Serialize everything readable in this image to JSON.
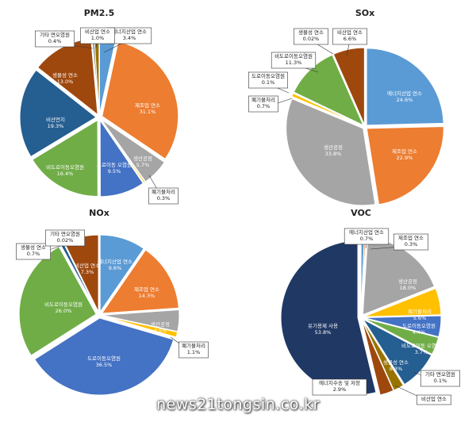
{
  "chart_data": [
    {
      "type": "pie",
      "title": "PM2.5",
      "slices": [
        {
          "label": "에너지산업 연소",
          "value": 3.4,
          "pct": "3.4%",
          "color": "#5b9bd5"
        },
        {
          "label": "제조업 연소",
          "value": 31.1,
          "pct": "31.1%",
          "color": "#ed7d31"
        },
        {
          "label": "생산공정",
          "value": 5.7,
          "pct": "5.7%",
          "color": "#a5a5a5"
        },
        {
          "label": "폐기물처리",
          "value": 0.3,
          "pct": "0.3%",
          "color": "#ffc000"
        },
        {
          "label": "도로이동 오염원",
          "value": 9.5,
          "pct": "9.5%",
          "color": "#4472c4"
        },
        {
          "label": "비도로이동오염원",
          "value": 16.4,
          "pct": "16.4%",
          "color": "#70ad47"
        },
        {
          "label": "비산먼지",
          "value": 19.3,
          "pct": "19.3%",
          "color": "#255e91"
        },
        {
          "label": "생물성 연소",
          "value": 13.0,
          "pct": "13.0%",
          "color": "#9e480e"
        },
        {
          "label": "기타 면오염원",
          "value": 0.4,
          "pct": "0.4%",
          "color": "#636363"
        },
        {
          "label": "비산업 연소",
          "value": 1.0,
          "pct": "1.0%",
          "color": "#997300"
        }
      ]
    },
    {
      "type": "pie",
      "title": "SOx",
      "slices": [
        {
          "label": "에너지산업 연소",
          "value": 24.6,
          "pct": "24.6%",
          "color": "#5b9bd5"
        },
        {
          "label": "제조업 연소",
          "value": 22.9,
          "pct": "22.9%",
          "color": "#ed7d31"
        },
        {
          "label": "생산공정",
          "value": 33.8,
          "pct": "33.8%",
          "color": "#a5a5a5"
        },
        {
          "label": "폐기물처리",
          "value": 0.7,
          "pct": "0.7%",
          "color": "#ffc000"
        },
        {
          "label": "도로이동오염원",
          "value": 0.1,
          "pct": "0.1%",
          "color": "#4472c4"
        },
        {
          "label": "비도로이동오염원",
          "value": 11.3,
          "pct": "11.3%",
          "color": "#70ad47"
        },
        {
          "label": "생물성 연소",
          "value": 0.02,
          "pct": "0.02%",
          "color": "#255e91"
        },
        {
          "label": "비산업 연소",
          "value": 6.6,
          "pct": "6.6%",
          "color": "#9e480e"
        }
      ]
    },
    {
      "type": "pie",
      "title": "NOx",
      "slices": [
        {
          "label": "에너지산업 연소",
          "value": 9.6,
          "pct": "9.6%",
          "color": "#5b9bd5"
        },
        {
          "label": "제조업 연소",
          "value": 14.3,
          "pct": "14.3%",
          "color": "#ed7d31"
        },
        {
          "label": "생산공정",
          "value": 4.5,
          "pct": "4.5%",
          "color": "#a5a5a5"
        },
        {
          "label": "폐기물처리",
          "value": 1.1,
          "pct": "1.1%",
          "color": "#ffc000"
        },
        {
          "label": "도로이동오염원",
          "value": 36.5,
          "pct": "36.5%",
          "color": "#4472c4"
        },
        {
          "label": "비도로이동오염원",
          "value": 26.0,
          "pct": "26.0%",
          "color": "#70ad47"
        },
        {
          "label": "생물성 연소",
          "value": 0.7,
          "pct": "0.7%",
          "color": "#255e91"
        },
        {
          "label": "기타 면오염원",
          "value": 0.02,
          "pct": "0.02%",
          "color": "#636363"
        },
        {
          "label": "비산업 연소",
          "value": 7.3,
          "pct": "7.3%",
          "color": "#9e480e"
        }
      ]
    },
    {
      "type": "pie",
      "title": "VOC",
      "slices": [
        {
          "label": "에너지산업 연소",
          "value": 0.7,
          "pct": "0.7%",
          "color": "#5b9bd5"
        },
        {
          "label": "제조업 연소",
          "value": 0.3,
          "pct": "0.3%",
          "color": "#ed7d31"
        },
        {
          "label": "생산공정",
          "value": 18.0,
          "pct": "18.0%",
          "color": "#a5a5a5"
        },
        {
          "label": "폐기물처리",
          "value": 5.6,
          "pct": "5.6%",
          "color": "#ffc000"
        },
        {
          "label": "도로이동오염원",
          "value": 4.4,
          "pct": "4.4%",
          "color": "#4472c4"
        },
        {
          "label": "비도로이동 오염원",
          "value": 3.7,
          "pct": "3.7%",
          "color": "#70ad47"
        },
        {
          "label": "생물성 연소",
          "value": 8.3,
          "pct": "8.3%",
          "color": "#255e91"
        },
        {
          "label": "기타 면오염원",
          "value": 0.1,
          "pct": "0.1%",
          "color": "#636363"
        },
        {
          "label": "비산업 연소",
          "value": 2.2,
          "pct": "",
          "color": "#997300"
        },
        {
          "label": "에너지수송 및 저장",
          "value": 2.9,
          "pct": "2.9%",
          "color": "#9e480e"
        },
        {
          "label": "유기용제 사용",
          "value": 53.8,
          "pct": "53.8%",
          "color": "#203864"
        }
      ]
    }
  ],
  "watermark": "news21tongsin.co.kr"
}
